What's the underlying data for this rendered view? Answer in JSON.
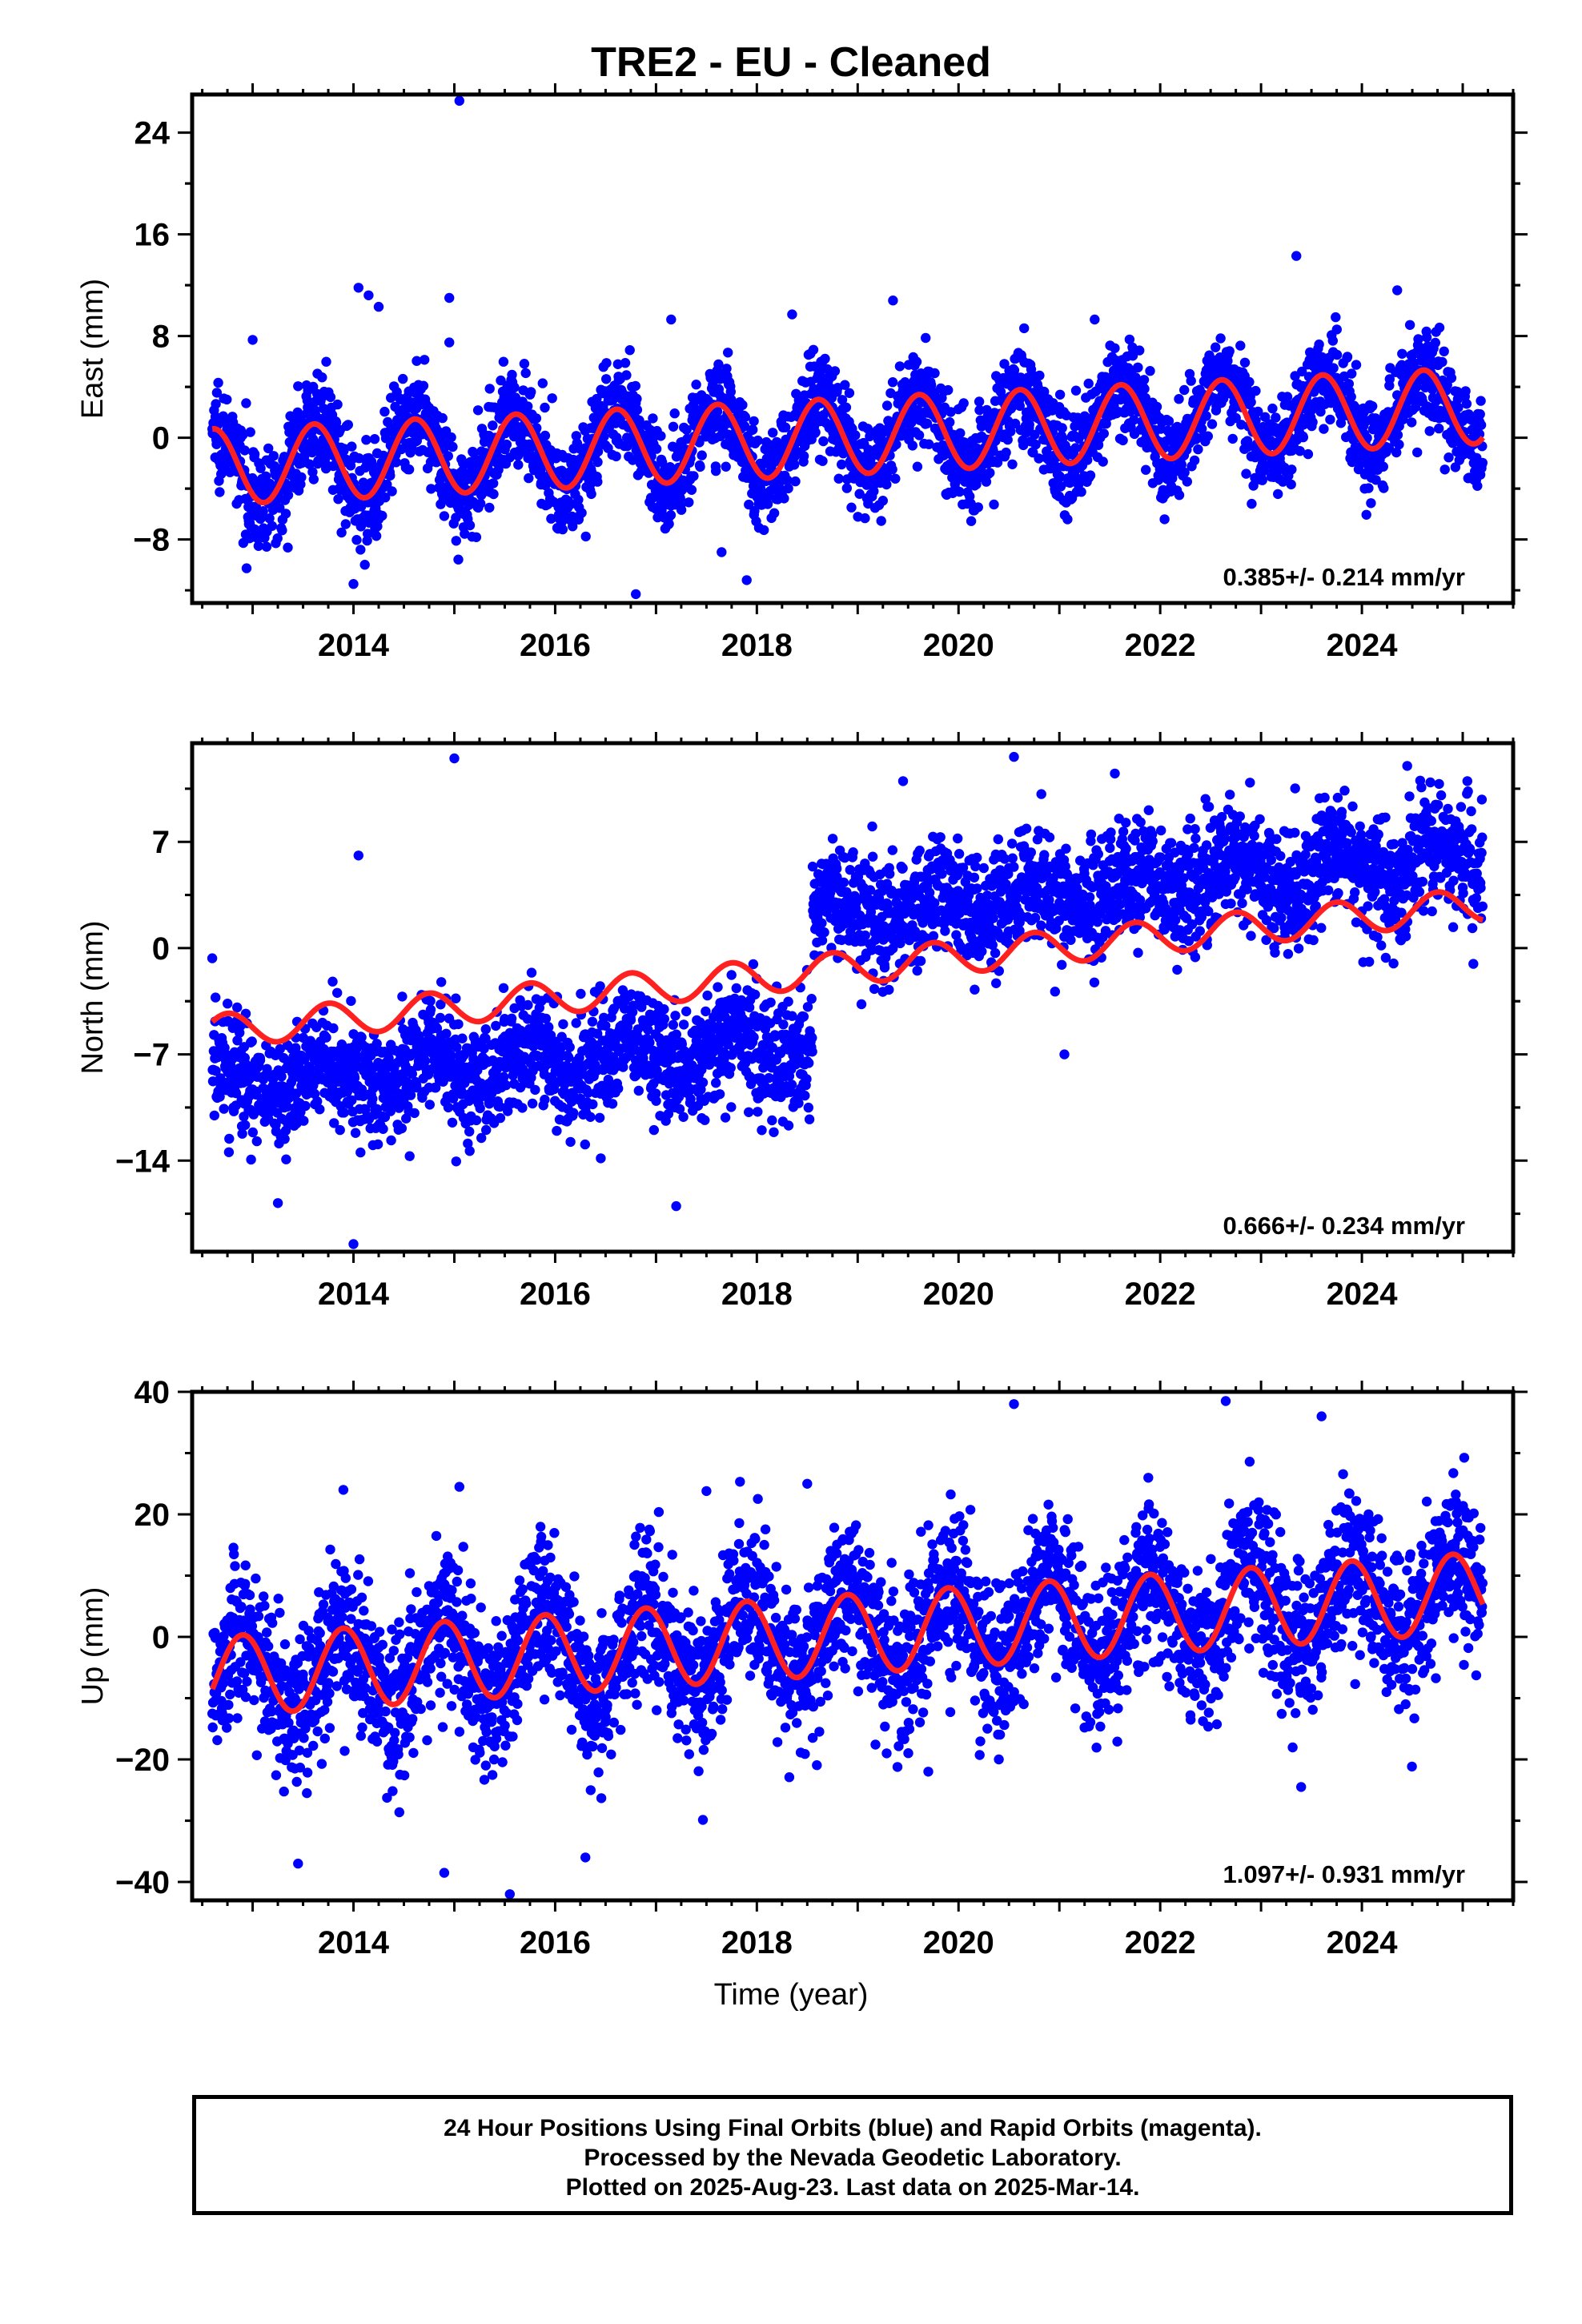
{
  "title": "TRE2  - EU - Cleaned",
  "colors": {
    "data": "#0000ff",
    "model": "#ff2020",
    "axes": "#000000"
  },
  "x_label": "Time (year)",
  "footer": [
    "24 Hour Positions Using Final Orbits (blue) and Rapid Orbits (magenta).",
    "Processed by the Nevada Geodetic Laboratory.",
    "Plotted on 2025-Aug-23. Last data on 2025-Mar-14."
  ],
  "chart_data": [
    {
      "type": "scatter",
      "name": "east",
      "ylabel": "East (mm)",
      "xlim": [
        2012.4,
        2025.5
      ],
      "ylim": [
        -13,
        27
      ],
      "yticks": [
        -8,
        0,
        8,
        16,
        24
      ],
      "xticks": [
        2014,
        2016,
        2018,
        2020,
        2022,
        2024
      ],
      "rate_label": "0.385+/- 0.214 mm/yr",
      "data_range": [
        2012.6,
        2025.2
      ],
      "series": [
        {
          "label": "data",
          "amplitude": 3.0,
          "noise_sd": 1.9,
          "phase_year": 0.36
        },
        {
          "label": "model",
          "segments": [
            {
              "from": 2012.6,
              "to": 2025.2,
              "offset_at_start": -2.3,
              "rate": 0.385
            }
          ],
          "annual_amplitude": 3.0,
          "phase_year": 0.36
        }
      ],
      "outliers": [
        [
          2015.05,
          26.5
        ],
        [
          2014.05,
          11.8
        ],
        [
          2014.15,
          11.2
        ],
        [
          2014.25,
          10.3
        ],
        [
          2014.95,
          11.0
        ],
        [
          2014.95,
          7.5
        ],
        [
          2017.15,
          9.3
        ],
        [
          2018.35,
          9.7
        ],
        [
          2019.35,
          10.8
        ],
        [
          2021.35,
          9.3
        ],
        [
          2023.35,
          14.3
        ],
        [
          2024.35,
          11.6
        ],
        [
          2013.0,
          7.7
        ],
        [
          2014.0,
          -11.5
        ],
        [
          2016.8,
          -12.3
        ],
        [
          2017.9,
          -11.2
        ],
        [
          2017.65,
          -9.0
        ]
      ]
    },
    {
      "type": "scatter",
      "name": "north",
      "ylabel": "North (mm)",
      "xlim": [
        2012.4,
        2025.5
      ],
      "ylim": [
        -20,
        13.5
      ],
      "yticks": [
        -14,
        -7,
        0,
        7
      ],
      "xticks": [
        2014,
        2016,
        2018,
        2020,
        2022,
        2024
      ],
      "rate_label": "0.666+/- 0.234 mm/yr",
      "data_range": [
        2012.6,
        2025.2
      ],
      "series": [
        {
          "label": "data",
          "segments": [
            {
              "from": 2012.6,
              "to": 2018.55,
              "offset_at_start": -9.0,
              "rate": 0.45
            },
            {
              "from": 2018.55,
              "to": 2025.2,
              "offset_at_start": 2.2,
              "rate": 0.55
            }
          ],
          "amplitude": 1.2,
          "noise_sd": 1.9,
          "phase_year": 0.5
        },
        {
          "label": "model",
          "segments": [
            {
              "from": 2012.6,
              "to": 2025.2,
              "offset_at_start": -5.5,
              "rate": 0.666
            }
          ],
          "annual_amplitude": 1.1,
          "phase_year": 0.5
        }
      ],
      "outliers": [
        [
          2015.0,
          12.5
        ],
        [
          2014.05,
          6.1
        ],
        [
          2019.45,
          11.0
        ],
        [
          2020.55,
          12.6
        ],
        [
          2021.55,
          11.5
        ],
        [
          2024.45,
          12.0
        ],
        [
          2014.0,
          -19.5
        ],
        [
          2013.25,
          -16.8
        ],
        [
          2017.2,
          -17.0
        ],
        [
          2021.05,
          -7.0
        ]
      ]
    },
    {
      "type": "scatter",
      "name": "up",
      "ylabel": "Up (mm)",
      "xlim": [
        2012.4,
        2025.5
      ],
      "ylim": [
        -43,
        40
      ],
      "yticks": [
        -40,
        -20,
        0,
        20,
        40
      ],
      "xticks": [
        2014,
        2016,
        2018,
        2020,
        2022,
        2024
      ],
      "rate_label": "1.097+/- 0.931 mm/yr",
      "data_range": [
        2012.6,
        2025.2
      ],
      "series": [
        {
          "label": "data",
          "amplitude": 7.0,
          "noise_sd": 6.2,
          "phase_year": 0.65
        },
        {
          "label": "model",
          "segments": [
            {
              "from": 2012.6,
              "to": 2025.2,
              "offset_at_start": -6.5,
              "rate": 1.097
            }
          ],
          "annual_amplitude": 6.5,
          "phase_year": 0.65
        }
      ],
      "outliers": [
        [
          2020.55,
          38.0
        ],
        [
          2022.65,
          38.5
        ],
        [
          2023.6,
          36.0
        ],
        [
          2015.55,
          -42.0
        ],
        [
          2013.45,
          -37.0
        ],
        [
          2014.9,
          -38.5
        ],
        [
          2013.9,
          24.0
        ],
        [
          2015.05,
          24.5
        ],
        [
          2017.5,
          23.8
        ],
        [
          2018.5,
          25.0
        ],
        [
          2016.3,
          -36.0
        ],
        [
          2019.7,
          -22.0
        ],
        [
          2020.4,
          -20.0
        ]
      ]
    }
  ]
}
